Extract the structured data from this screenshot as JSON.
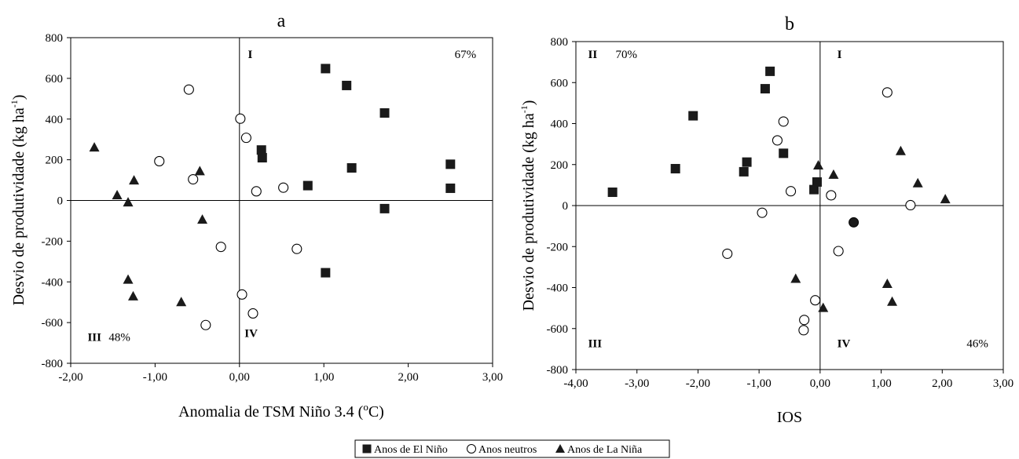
{
  "chart_data": [
    {
      "panel": "a",
      "type": "scatter",
      "title": "a",
      "xlabel": "Anomalia de TSM Niño 3.4 (",
      "xlabel_degree": "o",
      "xlabel_unit": "C)",
      "ylabel_main": "Desvio de produtividade (kg ha",
      "ylabel_sup": "-1",
      "ylabel_end": ")",
      "xlim": [
        -2.0,
        3.0
      ],
      "ylim": [
        -800,
        800
      ],
      "xticks": [
        -2,
        -1,
        0,
        1,
        2,
        3
      ],
      "xtick_labels": [
        "-2,00",
        "-1,00",
        "0,00",
        "1,00",
        "2,00",
        "3,00"
      ],
      "yticks": [
        -800,
        -600,
        -400,
        -200,
        0,
        200,
        400,
        600,
        800
      ],
      "ytick_labels": [
        "-800",
        "-600",
        "-400",
        "-200",
        "0",
        "200",
        "400",
        "600",
        "800"
      ],
      "grid": false,
      "quadrant_annotations": [
        {
          "text": "I",
          "bold": true,
          "x": 0.1,
          "y": 700
        },
        {
          "text": "67%",
          "bold": false,
          "x": 2.55,
          "y": 700
        },
        {
          "text": "III",
          "bold": true,
          "x": -1.8,
          "y": -690
        },
        {
          "text": "48%",
          "bold": false,
          "x": -1.55,
          "y": -690
        },
        {
          "text": "IV",
          "bold": true,
          "x": 0.06,
          "y": -670
        }
      ],
      "series": [
        {
          "name": "Anos de El Niño",
          "marker": "square",
          "points": [
            [
              1.02,
              648
            ],
            [
              1.27,
              565
            ],
            [
              1.72,
              430
            ],
            [
              0.26,
              248
            ],
            [
              0.27,
              210
            ],
            [
              1.33,
              160
            ],
            [
              2.5,
              178
            ],
            [
              2.5,
              60
            ],
            [
              0.81,
              73
            ],
            [
              1.72,
              -40
            ],
            [
              1.02,
              -355
            ]
          ]
        },
        {
          "name": "Anos neutros",
          "marker": "circle",
          "points": [
            [
              -0.6,
              545
            ],
            [
              0.01,
              402
            ],
            [
              0.08,
              308
            ],
            [
              -0.95,
              193
            ],
            [
              -0.55,
              104
            ],
            [
              0.52,
              63
            ],
            [
              0.2,
              45
            ],
            [
              -0.22,
              -228
            ],
            [
              0.68,
              -238
            ],
            [
              0.03,
              -462
            ],
            [
              0.16,
              -555
            ],
            [
              -0.4,
              -612
            ]
          ]
        },
        {
          "name": "Anos de La Niña",
          "marker": "triangle",
          "points": [
            [
              -1.72,
              260
            ],
            [
              -0.47,
              143
            ],
            [
              -1.25,
              98
            ],
            [
              -1.45,
              25
            ],
            [
              -1.32,
              -10
            ],
            [
              -0.44,
              -95
            ],
            [
              -1.32,
              -390
            ],
            [
              -1.26,
              -472
            ],
            [
              -0.69,
              -500
            ]
          ]
        }
      ]
    },
    {
      "panel": "b",
      "type": "scatter",
      "title": "b",
      "xlabel": "IOS",
      "ylabel_main": "Desvio de produtividade (kg ha",
      "ylabel_sup": "-1",
      "ylabel_end": ")",
      "xlim": [
        -4.0,
        3.0
      ],
      "ylim": [
        -800,
        800
      ],
      "xticks": [
        -4,
        -3,
        -2,
        -1,
        0,
        1,
        2,
        3
      ],
      "xtick_labels": [
        "-4,00",
        "-3,00",
        "-2,00",
        "-1,00",
        "0,00",
        "1,00",
        "2,00",
        "3,00"
      ],
      "yticks": [
        -800,
        -600,
        -400,
        -200,
        0,
        200,
        400,
        600,
        800
      ],
      "ytick_labels": [
        "-800",
        "-600",
        "-400",
        "-200",
        "0",
        "200",
        "400",
        "600",
        "800"
      ],
      "grid": false,
      "quadrant_annotations": [
        {
          "text": "II",
          "bold": true,
          "x": -3.8,
          "y": 720
        },
        {
          "text": "70%",
          "bold": false,
          "x": -3.35,
          "y": 720
        },
        {
          "text": "I",
          "bold": true,
          "x": 0.28,
          "y": 720
        },
        {
          "text": "III",
          "bold": true,
          "x": -3.8,
          "y": -690
        },
        {
          "text": "IV",
          "bold": true,
          "x": 0.28,
          "y": -690
        },
        {
          "text": "46%",
          "bold": false,
          "x": 2.4,
          "y": -690
        }
      ],
      "series": [
        {
          "name": "Anos de El Niño",
          "marker": "square",
          "points": [
            [
              -0.82,
              655
            ],
            [
              -0.9,
              570
            ],
            [
              -2.08,
              438
            ],
            [
              -2.37,
              180
            ],
            [
              -1.2,
              212
            ],
            [
              -1.25,
              165
            ],
            [
              -0.6,
              255
            ],
            [
              -0.05,
              115
            ],
            [
              -0.1,
              78
            ],
            [
              -3.4,
              65
            ]
          ]
        },
        {
          "name": "Anos neutros",
          "marker": "circle",
          "points": [
            [
              1.1,
              552
            ],
            [
              -0.6,
              410
            ],
            [
              -0.7,
              318
            ],
            [
              -0.48,
              70
            ],
            [
              0.18,
              50
            ],
            [
              1.48,
              2
            ],
            [
              -0.95,
              -35
            ],
            [
              -1.52,
              -235
            ],
            [
              0.3,
              -222
            ],
            [
              -0.08,
              -462
            ],
            [
              -0.26,
              -558
            ],
            [
              -0.27,
              -608
            ]
          ]
        },
        {
          "name": "Anos de La Niña",
          "marker": "triangle",
          "points": [
            [
              1.32,
              265
            ],
            [
              -0.03,
              195
            ],
            [
              0.22,
              150
            ],
            [
              1.6,
              108
            ],
            [
              2.05,
              30
            ],
            [
              -0.4,
              -358
            ],
            [
              1.1,
              -383
            ],
            [
              1.18,
              -470
            ],
            [
              0.05,
              -500
            ]
          ]
        },
        {
          "name": "",
          "marker": "filled-circle",
          "points": [
            [
              0.55,
              -82
            ]
          ]
        }
      ]
    }
  ],
  "legend": {
    "items": [
      {
        "label": "Anos de El Niño",
        "marker": "square"
      },
      {
        "label": "Anos neutros",
        "marker": "circle"
      },
      {
        "label": "Anos de La Niña",
        "marker": "triangle"
      }
    ],
    "placement": "bottom-center"
  }
}
